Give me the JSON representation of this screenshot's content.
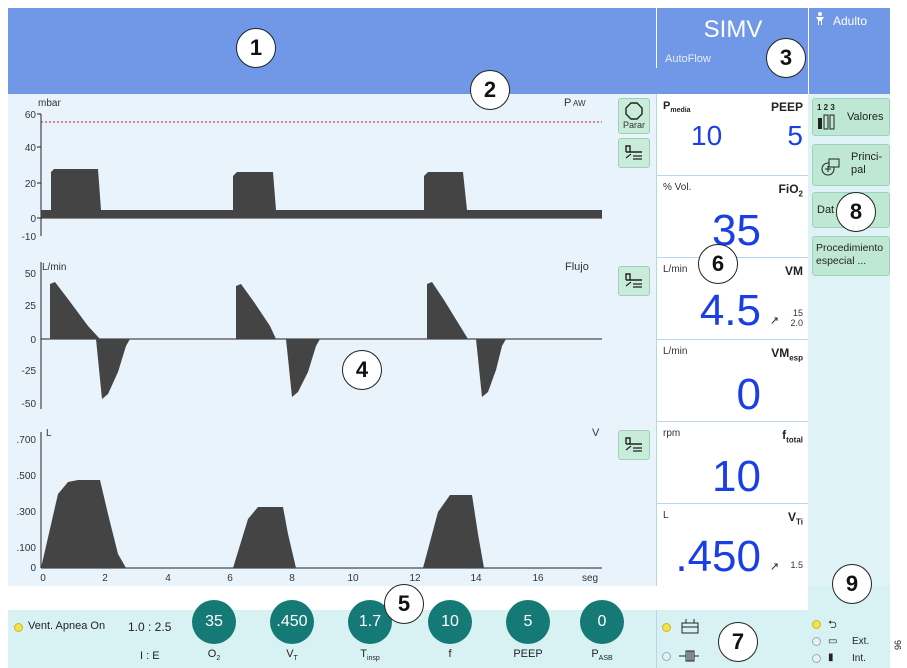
{
  "header": {
    "mode": "SIMV",
    "mode_sub": "AutoFlow",
    "patient": "Adulto",
    "patient_icon": "person-icon"
  },
  "waveforms": {
    "paw": {
      "unit": "mbar",
      "label": "P",
      "label_sub": "AW",
      "ticks": [
        "60",
        "40",
        "20",
        "0",
        "-10"
      ]
    },
    "flow": {
      "unit": "L/min",
      "label": "Flujo",
      "ticks": [
        "50",
        "25",
        "0",
        "-25",
        "-50"
      ]
    },
    "volume": {
      "unit": "L",
      "label": "V",
      "ticks": [
        ".700",
        ".500",
        ".300",
        ".100",
        "0"
      ]
    },
    "x_ticks": [
      "0",
      "2",
      "4",
      "6",
      "8",
      "10",
      "12",
      "14",
      "16"
    ],
    "x_unit": "seg",
    "stop_button": "Parar"
  },
  "values": {
    "pmedia": {
      "label": "P",
      "label_sub": "media",
      "value": "10"
    },
    "peep": {
      "label": "PEEP",
      "value": "5"
    },
    "fio2": {
      "unit": "% Vol.",
      "label": "FiO",
      "label_sub": "2",
      "value": "35"
    },
    "vm": {
      "unit": "L/min",
      "label": "VM",
      "value": "4.5",
      "range_hi": "15",
      "range_lo": "2.0"
    },
    "vmesp": {
      "unit": "L/min",
      "label": "VM",
      "label_sub": "esp",
      "value": "0"
    },
    "ftotal": {
      "unit": "rpm",
      "label": "f",
      "label_sub": "total",
      "value": "10"
    },
    "vti": {
      "unit": "L",
      "label": "V",
      "label_sub": "Ti",
      "value": ".450",
      "range": "1.5"
    }
  },
  "menu": {
    "valores_nums": "1 2 3",
    "valores": "Valores",
    "principal_1": "Princi-",
    "principal_2": "pal",
    "datos": "Dat",
    "procedimiento_1": "Procedimiento",
    "procedimiento_2": "especial ..."
  },
  "bottom": {
    "apnea": "Vent. Apnea On",
    "ie_value": "1.0 : 2.5",
    "ie_label": "I : E",
    "knobs": [
      {
        "value": "35",
        "label": "O",
        "label_sub": "2"
      },
      {
        "value": ".450",
        "label": "V",
        "label_sub": "T"
      },
      {
        "value": "1.7",
        "label": "T",
        "label_sub": "insp"
      },
      {
        "value": "10",
        "label": "f",
        "label_sub": ""
      },
      {
        "value": "5",
        "label": "PEEP",
        "label_sub": ""
      },
      {
        "value": "0",
        "label": "P",
        "label_sub": "ASB"
      }
    ],
    "power_ext": "Ext.",
    "power_int": "Int."
  },
  "callouts": [
    "1",
    "2",
    "3",
    "4",
    "5",
    "6",
    "7",
    "8",
    "9"
  ],
  "side_number": "96",
  "colors": {
    "header": "#7198e6",
    "wave_bg": "#e9f3fb",
    "value_blue": "#1a3fe6",
    "knob": "#157a76",
    "menu_btn": "#bfe8d4",
    "alarm_line": "#cc2222"
  }
}
